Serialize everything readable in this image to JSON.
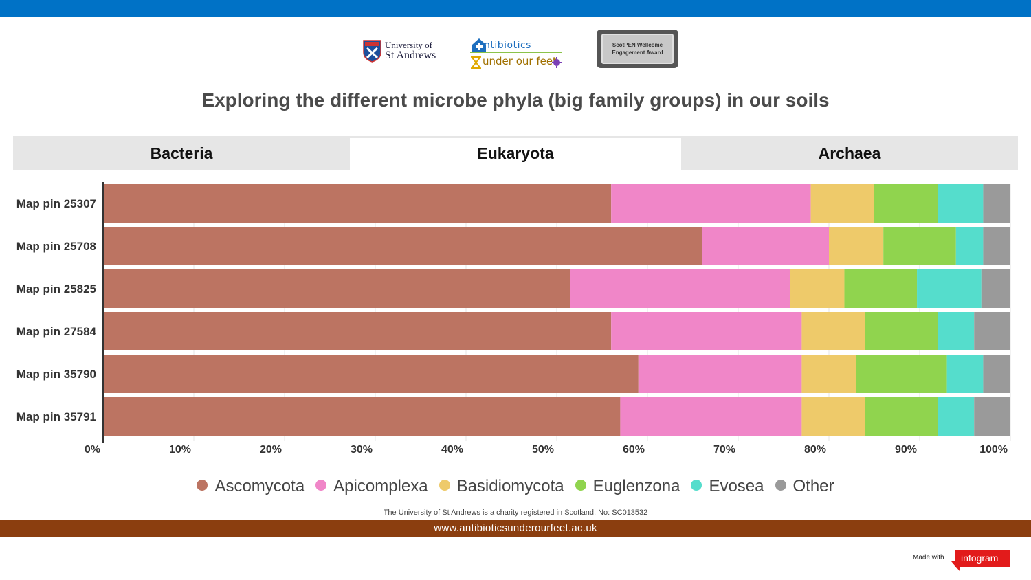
{
  "logos": {
    "st_andrews": {
      "line1": "University of",
      "line2": "St Andrews"
    },
    "antibiotics": {
      "line1": "ntibiotics",
      "line2": "under our feet"
    },
    "award": {
      "line1": "ScotPEN Wellcome",
      "line2": "Engagement Award"
    }
  },
  "title": "Exploring the different microbe phyla (big family groups) in our soils",
  "tabs": [
    {
      "label": "Bacteria",
      "active": false
    },
    {
      "label": "Eukaryota",
      "active": true
    },
    {
      "label": "Archaea",
      "active": false
    }
  ],
  "chart_data": {
    "type": "bar",
    "orientation": "horizontal",
    "stacked": true,
    "percent": true,
    "categories": [
      "Map pin 25307",
      "Map pin 25708",
      "Map pin 25825",
      "Map pin 27584",
      "Map pin 35790",
      "Map pin 35791"
    ],
    "series": [
      {
        "name": "Ascomycota",
        "color": "#bc7462",
        "values": [
          56,
          66,
          51.5,
          56,
          59,
          57
        ]
      },
      {
        "name": "Apicomplexa",
        "color": "#f086c8",
        "values": [
          22,
          14,
          24.2,
          21,
          18,
          20
        ]
      },
      {
        "name": "Basidiomycota",
        "color": "#eeca6a",
        "values": [
          7,
          6,
          6,
          7,
          6,
          7
        ]
      },
      {
        "name": "Euglenzona",
        "color": "#90d44e",
        "values": [
          7,
          8,
          8,
          8,
          10,
          8
        ]
      },
      {
        "name": "Evosea",
        "color": "#55ddcc",
        "values": [
          5,
          3,
          7.1,
          4,
          4,
          4
        ]
      },
      {
        "name": "Other",
        "color": "#9a9a9a",
        "values": [
          3,
          3,
          3.2,
          4,
          3,
          4
        ]
      }
    ],
    "xlim": [
      0,
      100
    ],
    "xticks": [
      "0%",
      "10%",
      "20%",
      "30%",
      "40%",
      "50%",
      "60%",
      "70%",
      "80%",
      "90%",
      "100%"
    ],
    "grid": true,
    "legend_position": "bottom"
  },
  "footer": {
    "charity": "The University of St Andrews is a charity registered in Scotland, No: SC013532",
    "website": "www.antibioticsunderourfeet.ac.uk",
    "made_with": "Made with",
    "brand": "infogram"
  }
}
